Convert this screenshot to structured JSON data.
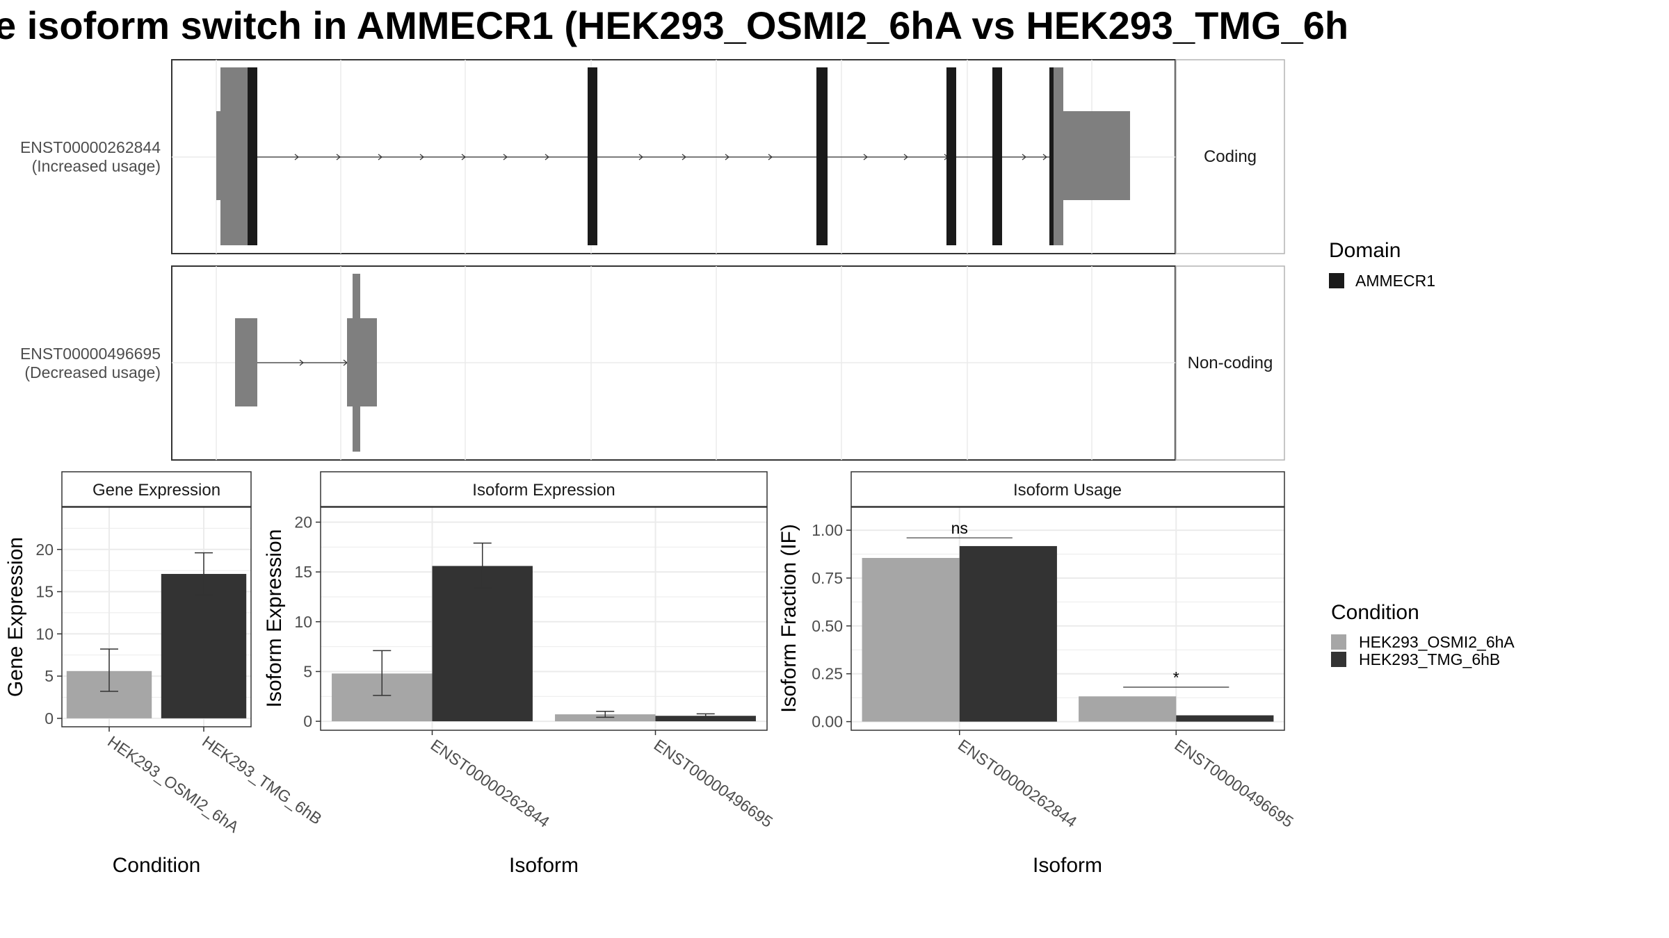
{
  "title": "e isoform switch in AMMECR1 (HEK293_OSMI2_6hA vs HEK293_TMG_6h",
  "colors": {
    "domain": "#1a1a1a",
    "exon": "#7f7f7f",
    "condition_a": "#a6a6a6",
    "condition_b": "#333333",
    "grid": "#ebebeb",
    "frame": "#333333",
    "strip_border": "#b3b3b3"
  },
  "isoform_structure": {
    "tracks": [
      {
        "id": "ENST00000262844",
        "label": "ENST00000262844",
        "sublabel": "(Increased usage)",
        "strip": "Coding"
      },
      {
        "id": "ENST00000496695",
        "label": "ENST00000496695",
        "sublabel": "(Decreased usage)",
        "strip": "Non-coding"
      }
    ],
    "domain_legend": {
      "title": "Domain",
      "items": [
        "AMMECR1"
      ]
    }
  },
  "chart_data": [
    {
      "type": "bar",
      "strip": "Gene Expression",
      "xlabel": "Condition",
      "ylabel": "Gene Expression",
      "categories": [
        "HEK293_OSMI2_6hA",
        "HEK293_TMG_6hB"
      ],
      "values": [
        5.6,
        17.1
      ],
      "errors": [
        [
          3.2,
          8.2
        ],
        [
          14.6,
          19.6
        ]
      ],
      "ylim": [
        -1,
        25
      ],
      "yticks": [
        0,
        5,
        10,
        15,
        20
      ],
      "ytick_labels": [
        "0",
        "5",
        "10",
        "15",
        "20"
      ]
    },
    {
      "type": "bar",
      "strip": "Isoform Expression",
      "xlabel": "Isoform",
      "ylabel": "Isoform Expression",
      "categories": [
        "ENST00000262844",
        "ENST00000496695"
      ],
      "series": [
        {
          "name": "HEK293_OSMI2_6hA",
          "values": [
            4.8,
            0.7
          ],
          "errors": [
            [
              2.6,
              7.1
            ],
            [
              0.4,
              1.0
            ]
          ]
        },
        {
          "name": "HEK293_TMG_6hB",
          "values": [
            15.6,
            0.55
          ],
          "errors": [
            [
              13.4,
              17.9
            ],
            [
              0.35,
              0.75
            ]
          ]
        }
      ],
      "ylim": [
        -0.9,
        21.5
      ],
      "yticks": [
        0,
        5,
        10,
        15,
        20
      ],
      "ytick_labels": [
        "0",
        "5",
        "10",
        "15",
        "20"
      ]
    },
    {
      "type": "bar",
      "strip": "Isoform Usage",
      "xlabel": "Isoform",
      "ylabel": "Isoform Fraction (IF)",
      "categories": [
        "ENST00000262844",
        "ENST00000496695"
      ],
      "series": [
        {
          "name": "HEK293_OSMI2_6hA",
          "values": [
            0.855,
            0.132
          ]
        },
        {
          "name": "HEK293_TMG_6hB",
          "values": [
            0.917,
            0.033
          ]
        }
      ],
      "significance": [
        "ns",
        "*"
      ],
      "significance_y": [
        0.96,
        0.18
      ],
      "ylim": [
        -0.045,
        1.12
      ],
      "yticks": [
        0,
        0.25,
        0.5,
        0.75,
        1.0
      ],
      "ytick_labels": [
        "0.00",
        "0.25",
        "0.50",
        "0.75",
        "1.00"
      ]
    }
  ],
  "condition_legend": {
    "title": "Condition",
    "items": [
      "HEK293_OSMI2_6hA",
      "HEK293_TMG_6hB"
    ]
  }
}
